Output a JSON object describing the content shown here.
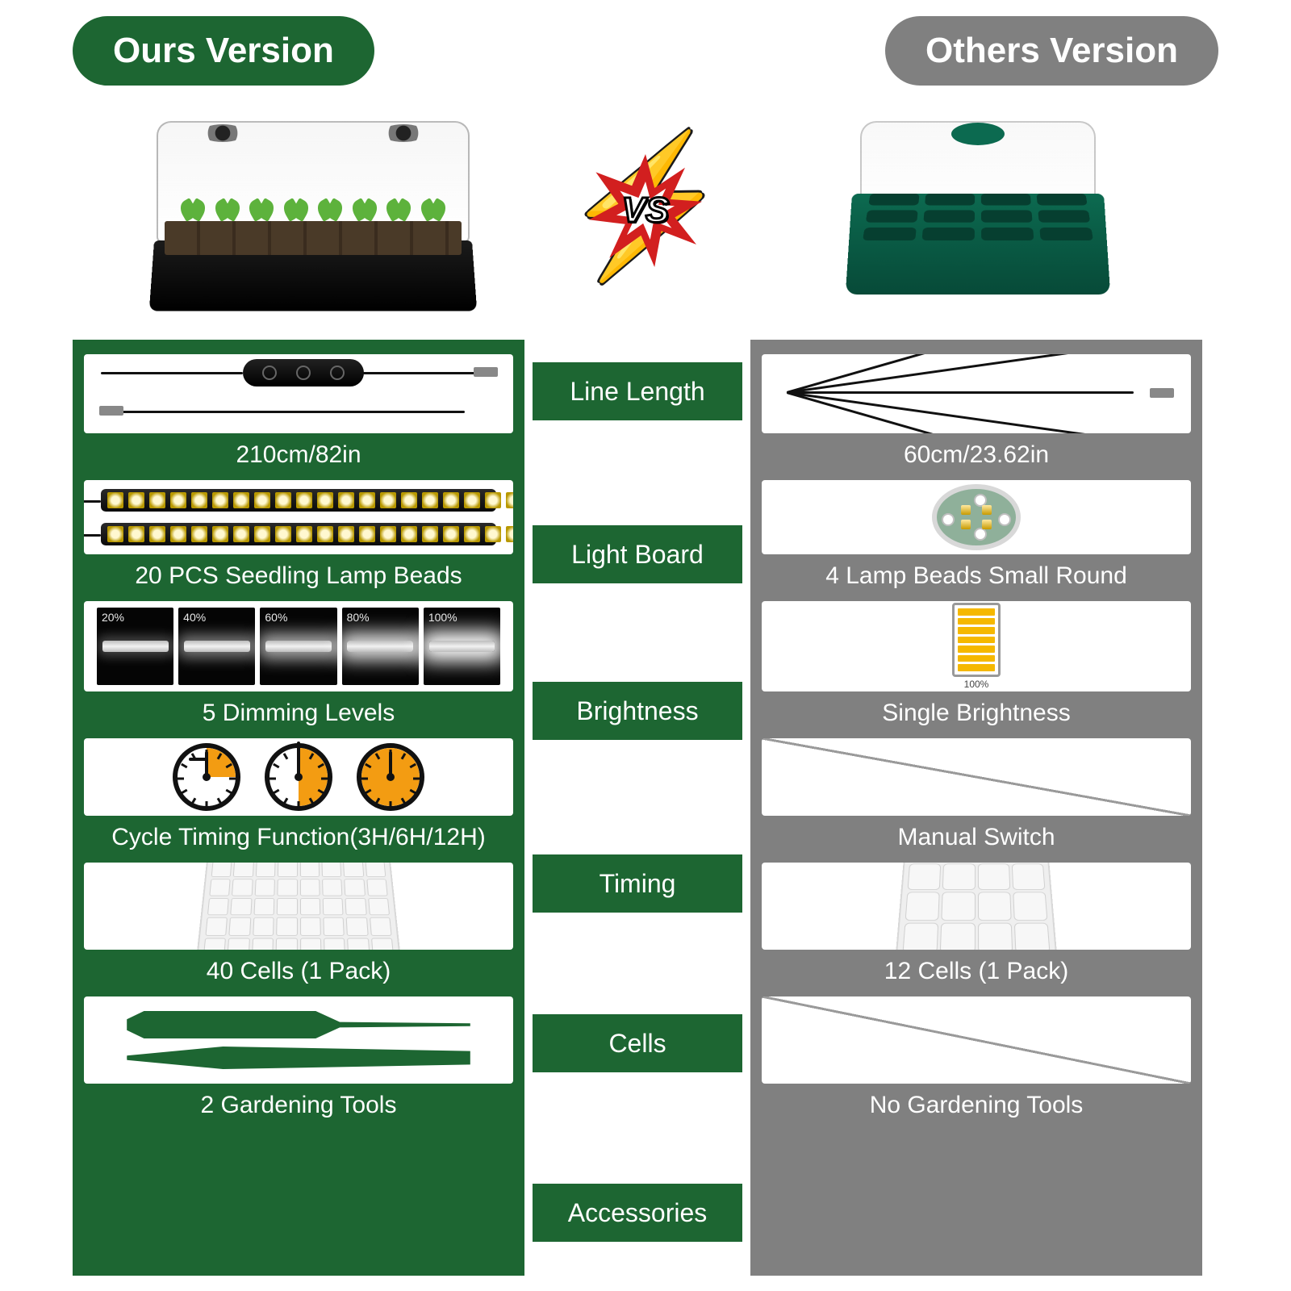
{
  "header": {
    "ours_label": "Ours Version",
    "others_label": "Others Version",
    "vs_label": "VS",
    "ours_bg": "#1d6632",
    "others_bg": "#808080"
  },
  "categories": [
    "Line Length",
    "Light Board",
    "Brightness",
    "Timing",
    "Cells",
    "Accessories"
  ],
  "ours": {
    "line_length": "210cm/82in",
    "light_board": "20 PCS Seedling Lamp Beads",
    "brightness": "5 Dimming Levels",
    "brightness_levels": [
      "20%",
      "40%",
      "60%",
      "80%",
      "100%"
    ],
    "brightness_glow_alpha": [
      0.25,
      0.45,
      0.65,
      0.85,
      1.0
    ],
    "timing": "Cycle Timing Function(3H/6H/12H)",
    "timing_hours": [
      3,
      6,
      12
    ],
    "cells": "40 Cells (1 Pack)",
    "cells_grid": {
      "cols": 8,
      "rows": 5
    },
    "accessories": "2 Gardening Tools",
    "led_count_per_strip": 20,
    "tool_color": "#1d6632"
  },
  "others": {
    "line_length": "60cm/23.62in",
    "light_board": "4 Lamp Beads Small Round",
    "brightness": "Single Brightness",
    "brightness_label": "100%",
    "timing": "Manual Switch",
    "cells": "12 Cells (1 Pack)",
    "cells_grid": {
      "cols": 4,
      "rows": 3
    },
    "accessories": "No Gardening Tools",
    "cable_fan_count": 5
  },
  "style": {
    "panel_green": "#1d6632",
    "panel_grey": "#808080",
    "chip_green": "#1d6632",
    "caption_color": "#ffffff",
    "caption_fontsize": 30,
    "label_fontsize": 32,
    "accent_orange": "#f39c12",
    "battery_color": "#f5b800",
    "product_others_green": "#0c6a50"
  }
}
